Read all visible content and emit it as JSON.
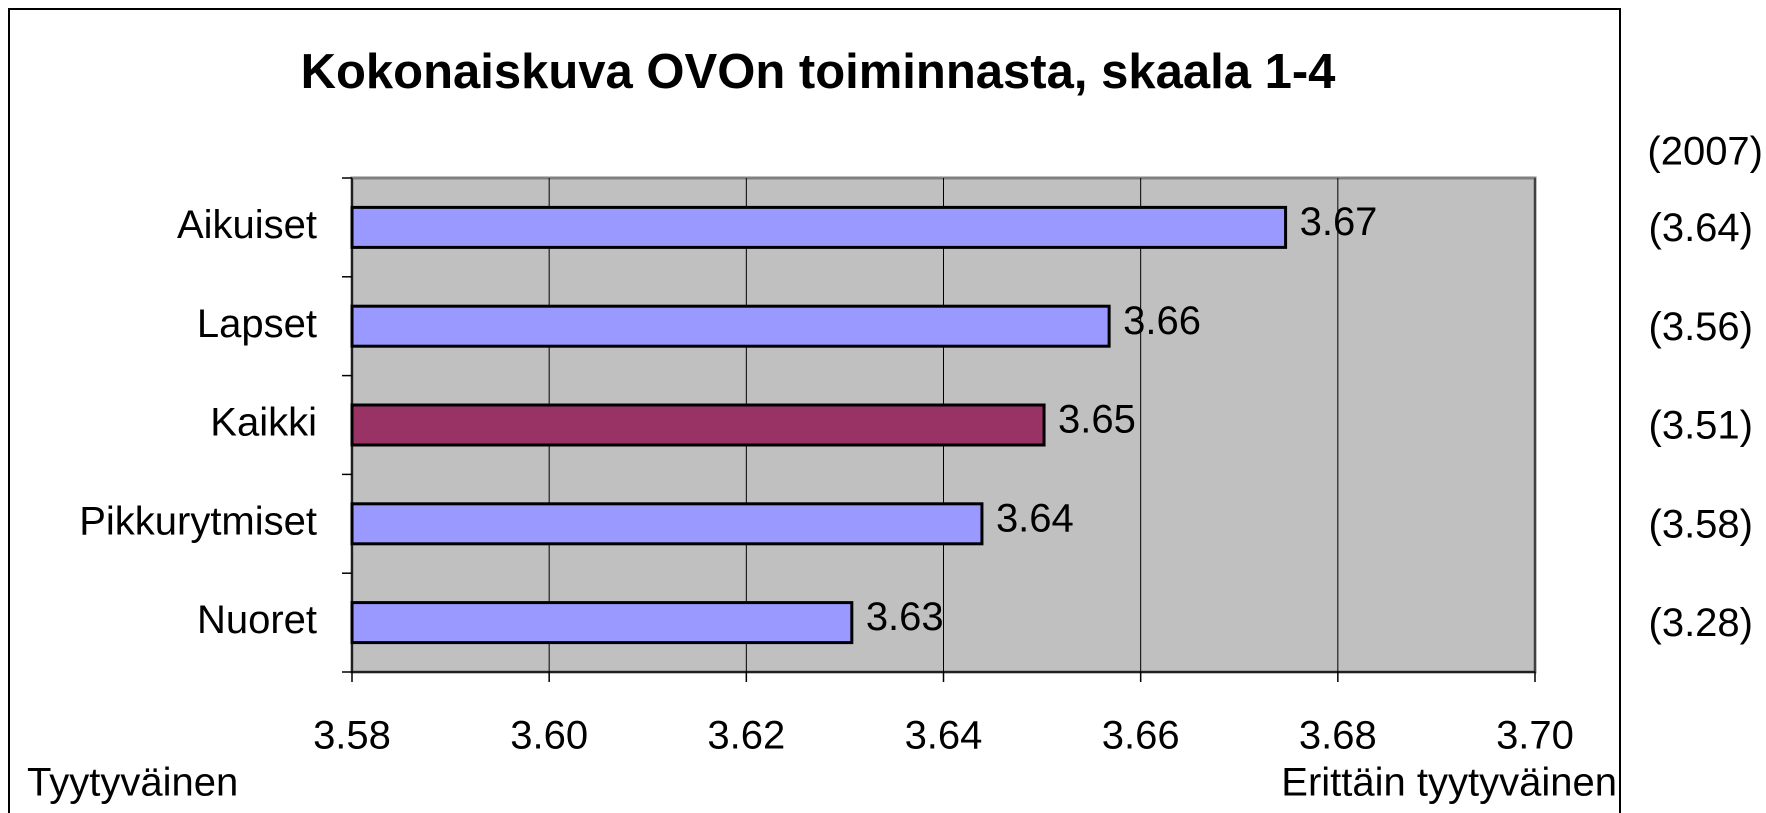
{
  "chart_data": {
    "type": "hbar",
    "title": "Kokonaiskuva OVOn toiminnasta, skaala 1-4",
    "categories": [
      "Aikuiset",
      "Lapset",
      "Kaikki",
      "Pikkurytmiset",
      "Nuoret"
    ],
    "values": [
      3.6747,
      3.6568,
      3.6502,
      3.6439,
      3.6307
    ],
    "value_labels": [
      "3.67",
      "3.66",
      "3.65",
      "3.64",
      "3.63"
    ],
    "colors": [
      "#9999ff",
      "#9999ff",
      "#993366",
      "#9999ff",
      "#9999ff"
    ],
    "xlim": [
      3.58,
      3.7
    ],
    "xticks": [
      3.58,
      {
        "value": 3.6,
        "label": "3.60"
      },
      3.62,
      3.64,
      3.66,
      3.68,
      {
        "value": 3.7,
        "label": "3.70"
      }
    ],
    "grid": true,
    "x_label_left": "Tyytyväinen",
    "x_label_right": "Erittäin tyytyväinen",
    "comparison_title": "(2007)",
    "comparison_labels": [
      "(3.64)",
      "(3.56)",
      "(3.51)",
      "(3.58)",
      "(3.28)"
    ]
  }
}
